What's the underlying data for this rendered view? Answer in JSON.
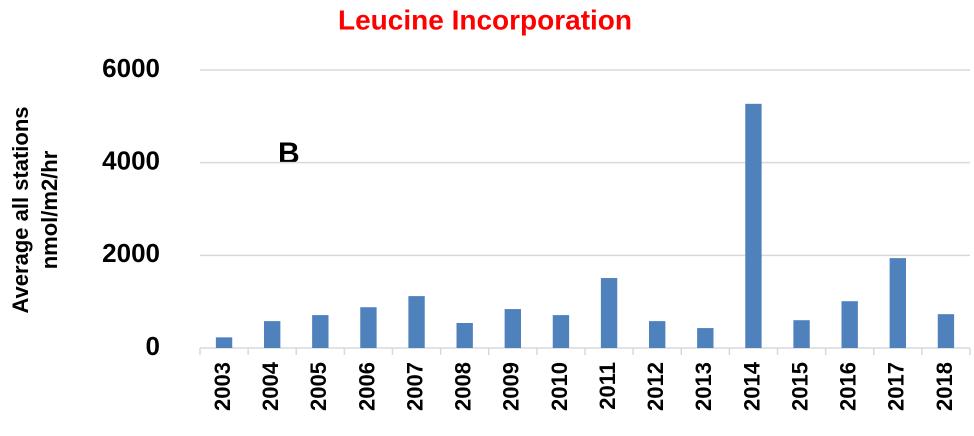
{
  "chart_data": {
    "type": "bar",
    "title": "Leucine Incorporation",
    "y_label": [
      "Average all stations",
      "nmol/m2/hr"
    ],
    "annotation": "B",
    "categories": [
      "2003",
      "2004",
      "2005",
      "2006",
      "2007",
      "2008",
      "2009",
      "2010",
      "2011",
      "2012",
      "2013",
      "2014",
      "2015",
      "2016",
      "2017",
      "2018"
    ],
    "values": [
      230,
      580,
      710,
      880,
      1120,
      540,
      840,
      710,
      1510,
      580,
      430,
      5270,
      600,
      1010,
      1940,
      730
    ],
    "color": "#4f81bd",
    "ylim": [
      0,
      6000
    ],
    "yticks": [
      0,
      2000,
      4000,
      6000
    ],
    "grid": true
  }
}
